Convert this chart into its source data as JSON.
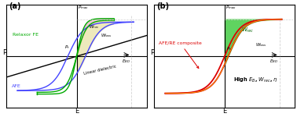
{
  "bg_color": "#ffffff",
  "panel_a": {
    "label": "(a)",
    "relaxor_fe_label": "Relaxor FE",
    "afe_label": "AFE",
    "linear_label": "Linear dielectric",
    "xlabel": "E",
    "ylabel": "P"
  },
  "panel_b": {
    "label": "(b)",
    "composite_label": "AFE/RE composite",
    "high_label": "High $E_B$, $W_{rec}$, $\\eta$",
    "xlabel": "E",
    "ylabel": "P"
  },
  "colors": {
    "afe": "#4444ff",
    "relaxor": "#00aa00",
    "linear": "#000000",
    "composite_outer": "#dd0000",
    "composite_inner": "#ffcc00",
    "w_rec_fill_a": "#e8b8c8",
    "w_loss_fill_a": "#e8e0a0",
    "w_rec_fill_b": "#44cc44",
    "bg": "#ffffff"
  }
}
